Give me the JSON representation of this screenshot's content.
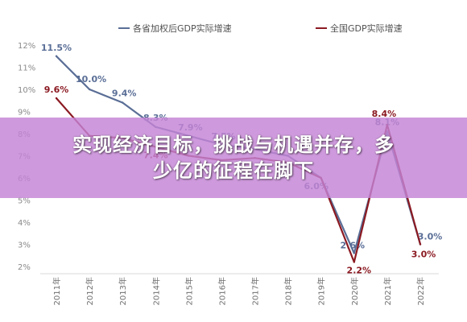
{
  "chart_data": {
    "type": "line",
    "title": "",
    "xlabel": "",
    "ylabel": "",
    "categories": [
      "2011年",
      "2012年",
      "2013年",
      "2014年",
      "2015年",
      "2016年",
      "2017年",
      "2018年",
      "2019年",
      "2020年",
      "2021年",
      "2022年"
    ],
    "ylim": [
      2,
      12
    ],
    "yticks": [
      "2%",
      "3%",
      "4%",
      "5%",
      "6%",
      "7%",
      "8%",
      "9%",
      "10%",
      "11%",
      "12%"
    ],
    "legend_position": "top",
    "grid": false,
    "series": [
      {
        "name": "各省加权后GDP实际增速",
        "color": "#5a6e96",
        "values": [
          11.5,
          10.0,
          9.4,
          8.3,
          7.9,
          7.5,
          7.3,
          7.0,
          6.0,
          2.6,
          8.1,
          3.0
        ],
        "labels": [
          "11.5%",
          "10.0%",
          "9.4%",
          "8.3%",
          "7.9%",
          "7.5%",
          "",
          "",
          "6.0%",
          "2.6%",
          "8.1%",
          "3.0%"
        ]
      },
      {
        "name": "全国GDP实际增速",
        "color": "#8b1a22",
        "values": [
          9.6,
          7.9,
          7.8,
          7.4,
          7.0,
          6.8,
          6.9,
          6.7,
          6.0,
          2.2,
          8.4,
          3.0
        ],
        "labels": [
          "9.6%",
          "",
          "",
          "7.4%",
          "",
          "",
          "",
          "",
          "",
          "2.2%",
          "8.4%",
          "3.0%"
        ]
      }
    ]
  },
  "overlay": {
    "headline_line1": "实现经济目标，挑战与机遇并存，多",
    "headline_line2": "少亿的征程在脚下",
    "banner_color": "#c484d6"
  }
}
